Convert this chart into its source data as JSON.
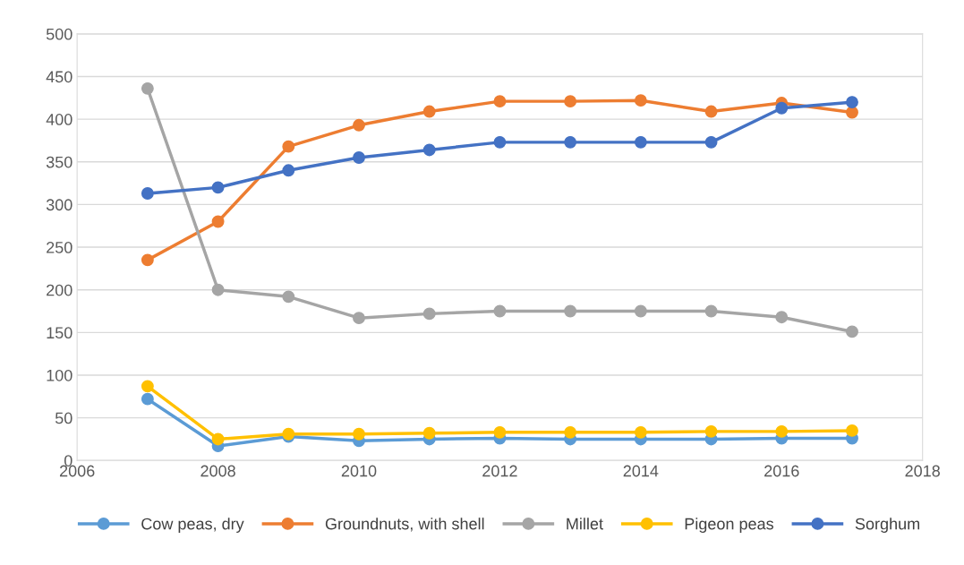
{
  "chart_data": {
    "type": "line",
    "x": [
      2007,
      2008,
      2009,
      2010,
      2011,
      2012,
      2013,
      2014,
      2015,
      2016,
      2017
    ],
    "xlim": [
      2006,
      2018
    ],
    "xticks": [
      2006,
      2008,
      2010,
      2012,
      2014,
      2016,
      2018
    ],
    "ylim": [
      0,
      500
    ],
    "yticks": [
      0,
      50,
      100,
      150,
      200,
      250,
      300,
      350,
      400,
      450,
      500
    ],
    "grid": "y",
    "legend": "bottom",
    "marker": "circle",
    "line_style": "solid",
    "series": [
      {
        "name": "Cow peas, dry",
        "color": "#5b9bd5",
        "values": [
          72,
          17,
          28,
          23,
          25,
          26,
          25,
          25,
          25,
          26,
          26
        ]
      },
      {
        "name": "Groundnuts, with shell",
        "color": "#ed7d31",
        "values": [
          235,
          280,
          368,
          393,
          409,
          421,
          421,
          422,
          409,
          419,
          408
        ]
      },
      {
        "name": "Millet",
        "color": "#a5a5a5",
        "values": [
          436,
          200,
          192,
          167,
          172,
          175,
          175,
          175,
          175,
          168,
          151
        ]
      },
      {
        "name": "Pigeon peas",
        "color": "#ffc000",
        "values": [
          87,
          25,
          31,
          31,
          32,
          33,
          33,
          33,
          34,
          34,
          35
        ]
      },
      {
        "name": "Sorghum",
        "color": "#4472c4",
        "values": [
          313,
          320,
          340,
          355,
          364,
          373,
          373,
          373,
          373,
          413,
          420
        ]
      }
    ]
  }
}
